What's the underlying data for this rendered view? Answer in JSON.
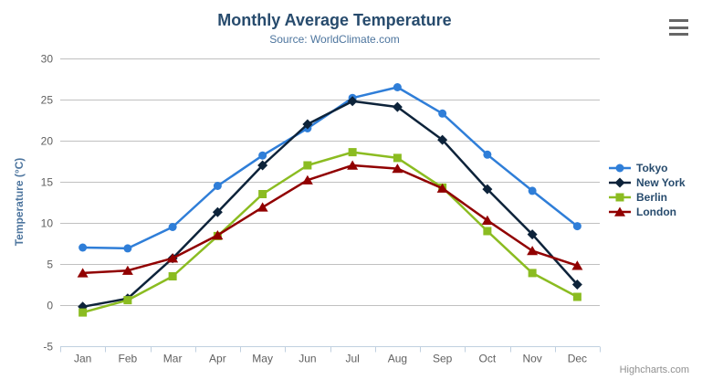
{
  "chart_data": {
    "type": "line",
    "title": "Monthly Average Temperature",
    "subtitle": "Source: WorldClimate.com",
    "xlabel": "",
    "ylabel": "Temperature (°C)",
    "categories": [
      "Jan",
      "Feb",
      "Mar",
      "Apr",
      "May",
      "Jun",
      "Jul",
      "Aug",
      "Sep",
      "Oct",
      "Nov",
      "Dec"
    ],
    "series": [
      {
        "name": "Tokyo",
        "color": "#2f7ed8",
        "marker": "circle",
        "values": [
          7.0,
          6.9,
          9.5,
          14.5,
          18.2,
          21.5,
          25.2,
          26.5,
          23.3,
          18.3,
          13.9,
          9.6
        ]
      },
      {
        "name": "New York",
        "color": "#0d233a",
        "marker": "diamond",
        "values": [
          -0.2,
          0.8,
          5.7,
          11.3,
          17.0,
          22.0,
          24.8,
          24.1,
          20.1,
          14.1,
          8.6,
          2.5
        ]
      },
      {
        "name": "Berlin",
        "color": "#8bbc21",
        "marker": "square",
        "values": [
          -0.9,
          0.6,
          3.5,
          8.4,
          13.5,
          17.0,
          18.6,
          17.9,
          14.3,
          9.0,
          3.9,
          1.0
        ]
      },
      {
        "name": "London",
        "color": "#910000",
        "marker": "triangle",
        "values": [
          3.9,
          4.2,
          5.7,
          8.5,
          11.9,
          15.2,
          17.0,
          16.6,
          14.2,
          10.3,
          6.6,
          4.8
        ]
      }
    ],
    "ylim": [
      -5,
      30
    ],
    "ytick_interval": 5,
    "grid": true,
    "legend_position": "right"
  },
  "colors": {
    "title": "#274b6d",
    "subtitle": "#4d759e",
    "axis_label": "#606060",
    "axis_title": "#4d759e",
    "gridline": "#c0c0c0",
    "axis_line": "#c0d0e0",
    "legend_text": "#274b6d",
    "credits": "#909090",
    "menu_icon": "#666666"
  },
  "credits": {
    "label": "Highcharts.com"
  },
  "toolbar": {
    "menu_icon": "hamburger-icon"
  }
}
